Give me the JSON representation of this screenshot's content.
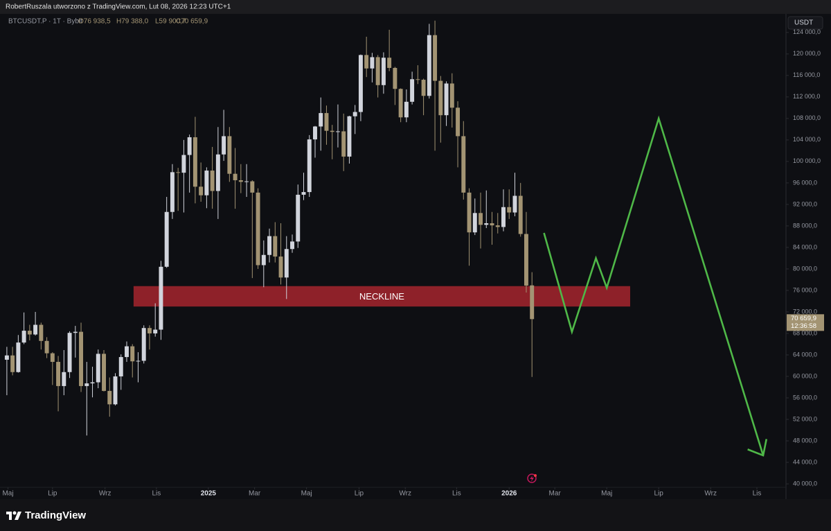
{
  "header": {
    "attribution": "RobertRuszala utworzono z TradingView.com, Lut 08, 2026 12:23 UTC+1",
    "symbol": "BTCUSDT.P · 1T · Bybit",
    "ohlc": [
      "O76 938,5",
      "H79 388,0",
      "L59 900,7",
      "C70 659,9"
    ],
    "currency": "USDT"
  },
  "footer": {
    "logo": "TradingView"
  },
  "chart_data": {
    "type": "candlestick",
    "up_color": "#d1d4dc",
    "down_color": "#a39473",
    "open": [
      63100,
      63900,
      60800,
      66300,
      68500,
      67800,
      69600,
      66600,
      64300,
      62700,
      58200,
      60800,
      68100,
      68300,
      58200,
      58700,
      58900,
      64200,
      57300,
      54800,
      60000,
      63600,
      65600,
      62800,
      62900,
      69000,
      68000,
      68700,
      80400,
      90600,
      98000,
      97900,
      101200,
      104500,
      95300,
      93700,
      98300,
      94500,
      101300,
      104700,
      97700,
      96500,
      96200,
      96300,
      94200,
      80700,
      82600,
      86100,
      82300,
      78400,
      83700,
      85100,
      93800,
      94300,
      104100,
      106500,
      109000,
      105700,
      105500,
      105600,
      100900,
      108400,
      109200,
      119800,
      117300,
      119400,
      114200,
      119300,
      117400,
      113500,
      108200,
      111100,
      115300,
      115200,
      112200,
      123500,
      115000,
      108600,
      114500,
      110000,
      104700,
      94200,
      86800,
      90400,
      88200,
      88500,
      88100,
      87800,
      91500,
      90500,
      93600,
      86500,
      76938.5
    ],
    "high": [
      65500,
      65500,
      67700,
      71900,
      69600,
      72000,
      70000,
      67300,
      64500,
      63800,
      64900,
      68400,
      69400,
      70000,
      62700,
      61800,
      65000,
      64900,
      59800,
      60600,
      64100,
      66500,
      66000,
      64500,
      69500,
      69500,
      73600,
      81500,
      93400,
      99500,
      98800,
      104000,
      105000,
      108300,
      99800,
      98900,
      102700,
      106400,
      109600,
      106400,
      102500,
      99500,
      99500,
      96500,
      95000,
      85300,
      87500,
      88700,
      88500,
      86100,
      86400,
      95700,
      97900,
      104900,
      106600,
      111900,
      110400,
      106800,
      110600,
      108900,
      108500,
      110500,
      119900,
      123200,
      120200,
      119800,
      120300,
      124500,
      117600,
      113600,
      113400,
      116700,
      117900,
      115400,
      125600,
      126200,
      115900,
      114900,
      116400,
      111200,
      107500,
      95000,
      93100,
      94200,
      94600,
      90600,
      90400,
      94800,
      94800,
      97900,
      96000,
      90600,
      79388
    ],
    "low": [
      56500,
      60200,
      60700,
      66000,
      66700,
      67600,
      65000,
      63400,
      58400,
      53500,
      56500,
      59700,
      63500,
      57100,
      49000,
      56100,
      57800,
      57200,
      52500,
      54600,
      57500,
      62700,
      59800,
      58900,
      62400,
      65000,
      67400,
      66800,
      80200,
      89300,
      90800,
      90500,
      94200,
      92200,
      92500,
      91300,
      91200,
      89300,
      100100,
      96200,
      91200,
      94100,
      93400,
      78300,
      80000,
      76600,
      81200,
      81200,
      77100,
      74400,
      83000,
      83900,
      92800,
      93400,
      100700,
      102000,
      103100,
      100400,
      102600,
      98200,
      99600,
      105100,
      107500,
      115700,
      114700,
      111900,
      112600,
      116800,
      110500,
      107300,
      107300,
      110600,
      114400,
      108600,
      111700,
      102000,
      103500,
      106600,
      106300,
      98900,
      92900,
      80600,
      86300,
      83800,
      87600,
      84500,
      86600,
      87000,
      89300,
      89800,
      86000,
      75600,
      59900.7
    ],
    "close": [
      63900,
      60800,
      66300,
      68500,
      67800,
      69600,
      66600,
      64300,
      62700,
      58200,
      60800,
      68100,
      68300,
      58200,
      58700,
      58900,
      64200,
      57300,
      54800,
      60000,
      63600,
      65600,
      62800,
      62900,
      69000,
      68000,
      68700,
      80400,
      90600,
      98000,
      97900,
      101200,
      104500,
      95300,
      93700,
      98300,
      94500,
      101300,
      104700,
      97700,
      96500,
      96200,
      96300,
      94200,
      80700,
      82600,
      86100,
      82300,
      78400,
      83700,
      85100,
      93800,
      94300,
      104100,
      106500,
      109000,
      105700,
      105500,
      105600,
      100900,
      108400,
      109200,
      119800,
      117300,
      119400,
      114200,
      119300,
      117400,
      113500,
      108200,
      111100,
      115300,
      115200,
      112200,
      123500,
      115000,
      108600,
      114500,
      110000,
      104700,
      94200,
      86800,
      90400,
      88200,
      88500,
      88100,
      87800,
      91500,
      90500,
      93600,
      86500,
      76900,
      70659.9
    ],
    "last_price_label": "70 659,9",
    "countdown": "12:36:58",
    "last_price_color": "#a39473",
    "xlim": [
      -1.2,
      136.5
    ],
    "ylim": [
      39100,
      127200
    ],
    "grid": false,
    "xticks": [
      {
        "value": 0.2,
        "label": "Maj"
      },
      {
        "value": 8.0,
        "label": "Lip"
      },
      {
        "value": 17.2,
        "label": "Wrz"
      },
      {
        "value": 26.2,
        "label": "Lis"
      },
      {
        "value": 35.3,
        "label": "2025"
      },
      {
        "value": 43.4,
        "label": "Mar"
      },
      {
        "value": 52.5,
        "label": "Maj"
      },
      {
        "value": 61.7,
        "label": "Lip"
      },
      {
        "value": 69.8,
        "label": "Wrz"
      },
      {
        "value": 78.8,
        "label": "Lis"
      },
      {
        "value": 88.0,
        "label": "2026"
      },
      {
        "value": 96.0,
        "label": "Mar"
      },
      {
        "value": 105.1,
        "label": "Maj"
      },
      {
        "value": 114.2,
        "label": "Lip"
      },
      {
        "value": 123.3,
        "label": "Wrz"
      },
      {
        "value": 131.4,
        "label": "Lis"
      }
    ],
    "yticks": [
      {
        "value": 40000,
        "label": "40 000,0"
      },
      {
        "value": 44000,
        "label": "44 000,0"
      },
      {
        "value": 48000,
        "label": "48 000,0"
      },
      {
        "value": 52000,
        "label": "52 000,0"
      },
      {
        "value": 56000,
        "label": "56 000,0"
      },
      {
        "value": 60000,
        "label": "60 000,0"
      },
      {
        "value": 64000,
        "label": "64 000,0"
      },
      {
        "value": 68000,
        "label": "68 000,0"
      },
      {
        "value": 72000,
        "label": "72 000,0"
      },
      {
        "value": 76000,
        "label": "76 000,0"
      },
      {
        "value": 80000,
        "label": "80 000,0"
      },
      {
        "value": 84000,
        "label": "84 000,0"
      },
      {
        "value": 88000,
        "label": "88 000,0"
      },
      {
        "value": 92000,
        "label": "92 000,0"
      },
      {
        "value": 96000,
        "label": "96 000,0"
      },
      {
        "value": 100000,
        "label": "100 000,0"
      },
      {
        "value": 104000,
        "label": "104 000,0"
      },
      {
        "value": 108000,
        "label": "108 000,0"
      },
      {
        "value": 112000,
        "label": "112 000,0"
      },
      {
        "value": 116000,
        "label": "116 000,0"
      },
      {
        "value": 120000,
        "label": "120 000,0"
      },
      {
        "value": 124000,
        "label": "124 000,0"
      }
    ],
    "zone": {
      "label": "NECKLINE",
      "color": "#8e2129",
      "x_range": [
        22.2,
        109.2
      ],
      "y_range": [
        73000,
        76800
      ]
    },
    "projection": {
      "color": "#4fb848",
      "x": [
        94.1,
        99.0,
        103.2,
        105.1,
        114.2,
        132.5
      ],
      "y": [
        86700,
        68300,
        82000,
        76500,
        108000,
        45300
      ]
    }
  }
}
